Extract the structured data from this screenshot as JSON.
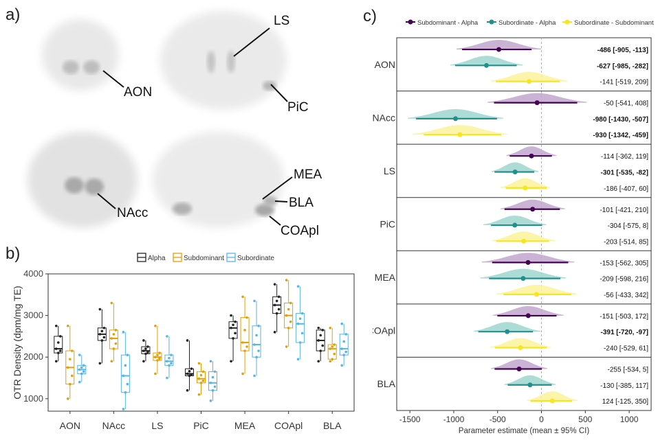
{
  "panels": {
    "a": "a)",
    "b": "b)",
    "c": "c)"
  },
  "panel_a": {
    "labels": {
      "AON": "AON",
      "LS": "LS",
      "PiC": "PiC",
      "NAcc": "NAcc",
      "MEA": "MEA",
      "BLA": "BLA",
      "COApl": "COApl"
    }
  },
  "colors": {
    "alpha": "#222222",
    "subdominant": "#E69F00",
    "subordinate": "#56B4E9",
    "c_subdom_alpha": "#440154",
    "c_subord_alpha": "#21908C",
    "c_subord_subdom": "#F5E61E",
    "c_subdom_alpha_fill": "#C2A6CE",
    "c_subord_alpha_fill": "#9FD5CF",
    "c_subord_subdom_fill": "#FAF29A"
  },
  "chart_data": [
    {
      "type": "box",
      "ylabel": "OTR Density (dpm/mg TE)",
      "ylim": [
        700,
        4000
      ],
      "yticks": [
        1000,
        2000,
        3000,
        4000
      ],
      "legend": {
        "placement": "top",
        "entries": [
          "Alpha",
          "Subdominant",
          "Subordinate"
        ]
      },
      "categories": [
        "AON",
        "NAcc",
        "LS",
        "PiC",
        "MEA",
        "COApl",
        "BLA"
      ],
      "series": [
        {
          "name": "Alpha",
          "boxes": [
            {
              "q1": 2100,
              "med": 2200,
              "q3": 2500,
              "lo": 1900,
              "hi": 2750
            },
            {
              "q1": 2400,
              "med": 2550,
              "q3": 2700,
              "lo": 1850,
              "hi": 3150
            },
            {
              "q1": 2080,
              "med": 2150,
              "q3": 2250,
              "lo": 1900,
              "hi": 2400
            },
            {
              "q1": 1550,
              "med": 1600,
              "q3": 1720,
              "lo": 1200,
              "hi": 2400
            },
            {
              "q1": 2450,
              "med": 2700,
              "q3": 2850,
              "lo": 1900,
              "hi": 3000
            },
            {
              "q1": 3050,
              "med": 3250,
              "q3": 3450,
              "lo": 2600,
              "hi": 3750
            },
            {
              "q1": 2150,
              "med": 2400,
              "q3": 2650,
              "lo": 1900,
              "hi": 2700
            }
          ]
        },
        {
          "name": "Subdominant",
          "boxes": [
            {
              "q1": 1350,
              "med": 1750,
              "q3": 2150,
              "lo": 1000,
              "hi": 2750
            },
            {
              "q1": 2200,
              "med": 2450,
              "q3": 2650,
              "lo": 1900,
              "hi": 3300
            },
            {
              "q1": 1920,
              "med": 2000,
              "q3": 2100,
              "lo": 1600,
              "hi": 2750
            },
            {
              "q1": 1380,
              "med": 1480,
              "q3": 1650,
              "lo": 1100,
              "hi": 1850
            },
            {
              "q1": 2150,
              "med": 2350,
              "q3": 2950,
              "lo": 1600,
              "hi": 3450
            },
            {
              "q1": 2700,
              "med": 3000,
              "q3": 3300,
              "lo": 2250,
              "hi": 3850
            },
            {
              "q1": 1950,
              "med": 2200,
              "q3": 2300,
              "lo": 1900,
              "hi": 2700
            }
          ]
        },
        {
          "name": "Subordinate",
          "boxes": [
            {
              "q1": 1600,
              "med": 1700,
              "q3": 1800,
              "lo": 1400,
              "hi": 2050
            },
            {
              "q1": 1150,
              "med": 1550,
              "q3": 2050,
              "lo": 750,
              "hi": 2600
            },
            {
              "q1": 1800,
              "med": 1900,
              "q3": 2050,
              "lo": 1500,
              "hi": 2500
            },
            {
              "q1": 1200,
              "med": 1380,
              "q3": 1650,
              "lo": 950,
              "hi": 1900
            },
            {
              "q1": 2000,
              "med": 2300,
              "q3": 2750,
              "lo": 1550,
              "hi": 3350
            },
            {
              "q1": 2350,
              "med": 2800,
              "q3": 3050,
              "lo": 1950,
              "hi": 3700
            },
            {
              "q1": 2050,
              "med": 2200,
              "q3": 2550,
              "lo": 1800,
              "hi": 2800
            }
          ]
        }
      ]
    },
    {
      "type": "forest",
      "xlabel": "Parameter estimate (mean ± 95% CI)",
      "xlim": [
        -1650,
        1250
      ],
      "xticks": [
        -1500,
        -1000,
        -500,
        0,
        500,
        1000
      ],
      "legend": {
        "placement": "top",
        "entries": [
          "Subdominant - Alpha",
          "Subordinate - Alpha",
          "Subordinate - Subdominant"
        ]
      },
      "regions": [
        "AON",
        "NAcc",
        "LS",
        "PiC",
        "MEA",
        "COApl",
        "BLA"
      ],
      "rows": [
        [
          {
            "mean": -486,
            "lo": -905,
            "hi": -113,
            "label": "-486 [-905, -113]",
            "bold": true
          },
          {
            "mean": -627,
            "lo": -985,
            "hi": -282,
            "label": "-627 [-985, -282]",
            "bold": true
          },
          {
            "mean": -141,
            "lo": -519,
            "hi": 209,
            "label": "-141 [-519, 209]",
            "bold": false
          }
        ],
        [
          {
            "mean": -50,
            "lo": -541,
            "hi": 408,
            "label": "-50 [-541, 408]",
            "bold": false
          },
          {
            "mean": -980,
            "lo": -1430,
            "hi": -507,
            "label": "-980 [-1430, -507]",
            "bold": true
          },
          {
            "mean": -930,
            "lo": -1342,
            "hi": -459,
            "label": "-930 [-1342, -459]",
            "bold": true
          }
        ],
        [
          {
            "mean": -114,
            "lo": -362,
            "hi": 119,
            "label": "-114 [-362, 119]",
            "bold": false
          },
          {
            "mean": -301,
            "lo": -535,
            "hi": -82,
            "label": "-301 [-535, -82]",
            "bold": true
          },
          {
            "mean": -186,
            "lo": -407,
            "hi": 60,
            "label": "-186 [-407, 60]",
            "bold": false
          }
        ],
        [
          {
            "mean": -101,
            "lo": -421,
            "hi": 210,
            "label": "-101 [-421, 210]",
            "bold": false
          },
          {
            "mean": -304,
            "lo": -575,
            "hi": 8,
            "label": "-304 [-575, 8]",
            "bold": false
          },
          {
            "mean": -203,
            "lo": -514,
            "hi": 85,
            "label": "-203 [-514, 85]",
            "bold": false
          }
        ],
        [
          {
            "mean": -153,
            "lo": -562,
            "hi": 305,
            "label": "-153 [-562, 305]",
            "bold": false
          },
          {
            "mean": -209,
            "lo": -598,
            "hi": 216,
            "label": "-209 [-598, 216]",
            "bold": false
          },
          {
            "mean": -56,
            "lo": -433,
            "hi": 342,
            "label": "-56 [-433, 342]",
            "bold": false
          }
        ],
        [
          {
            "mean": -151,
            "lo": -503,
            "hi": 172,
            "label": "-151 [-503, 172]",
            "bold": false
          },
          {
            "mean": -391,
            "lo": -720,
            "hi": -97,
            "label": "-391 [-720, -97]",
            "bold": true
          },
          {
            "mean": -240,
            "lo": -529,
            "hi": 61,
            "label": "-240 [-529, 61]",
            "bold": false
          }
        ],
        [
          {
            "mean": -255,
            "lo": -534,
            "hi": 5,
            "label": "-255 [-534, 5]",
            "bold": false
          },
          {
            "mean": -130,
            "lo": -385,
            "hi": 117,
            "label": "-130 [-385, 117]",
            "bold": false
          },
          {
            "mean": 124,
            "lo": -125,
            "hi": 350,
            "label": "124 [-125, 350]",
            "bold": false
          }
        ]
      ]
    }
  ]
}
